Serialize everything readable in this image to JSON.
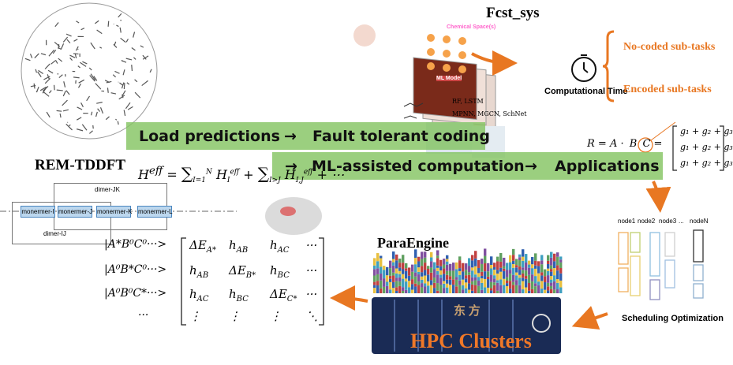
{
  "top_right": {
    "title": "Fcst_sys",
    "chemical_space": "Chemical Space(s)",
    "ml_model": "ML Model",
    "models": [
      "RF, LSTM",
      "MPNN, MGCN, SchNet"
    ],
    "time_label": "Computational Time",
    "branches": [
      "No-coded sub-tasks",
      "Encoded sub-tasks"
    ]
  },
  "banner": {
    "row1": [
      "Load predictions",
      "→",
      "Fault tolerant coding"
    ],
    "row2": [
      "→",
      "ML-assisted computation",
      "→",
      "Applications"
    ]
  },
  "left": {
    "title": "REM-TDDFT",
    "hamiltonian": [
      "H",
      "eff",
      "=",
      "∑",
      "I=1",
      "N",
      "H",
      "I",
      "eff",
      "+",
      "∑",
      "I>J",
      "H",
      "I,J",
      "eff",
      "+ ⋯"
    ],
    "dimers": [
      "dimer-JK",
      "dimer-IJ"
    ],
    "monomers": [
      "monermer-I",
      "monermer-J",
      "monermer-K",
      "monermer-L"
    ]
  },
  "matrix": {
    "row_labels": [
      "|A*B⁰C⁰···>",
      "|A⁰B*C⁰···>",
      "|A⁰B⁰C*···>",
      "···"
    ],
    "cells": [
      [
        {
          "base": "ΔE",
          "sub": "A*"
        },
        {
          "base": "h",
          "sub": "AB"
        },
        {
          "base": "h",
          "sub": "AC"
        },
        {
          "base": "···",
          "sub": ""
        }
      ],
      [
        {
          "base": "h",
          "sub": "AB"
        },
        {
          "base": "ΔE",
          "sub": "B*"
        },
        {
          "base": "h",
          "sub": "BC"
        },
        {
          "base": "···",
          "sub": ""
        }
      ],
      [
        {
          "base": "h",
          "sub": "AC"
        },
        {
          "base": "h",
          "sub": "BC"
        },
        {
          "base": "ΔE",
          "sub": "C*"
        },
        {
          "base": "···",
          "sub": ""
        }
      ],
      [
        {
          "base": "⋮",
          "sub": ""
        },
        {
          "base": "⋮",
          "sub": ""
        },
        {
          "base": "⋮",
          "sub": ""
        },
        {
          "base": "⋱",
          "sub": ""
        }
      ]
    ]
  },
  "center": {
    "title": "ParaEngine",
    "cluster": "HPC Clusters",
    "logo": "东 方"
  },
  "right": {
    "equation": [
      "R = A ·",
      "B",
      "C ="
    ],
    "matrix_rows": [
      "g₁ + g₂ + g₃",
      "g₁ + g₂ + g₃",
      "g₁ + g₂ + g₃"
    ],
    "nodes": [
      "node1",
      "node2",
      "node3",
      "...",
      "nodeN"
    ],
    "caption": "Scheduling Optimization"
  }
}
